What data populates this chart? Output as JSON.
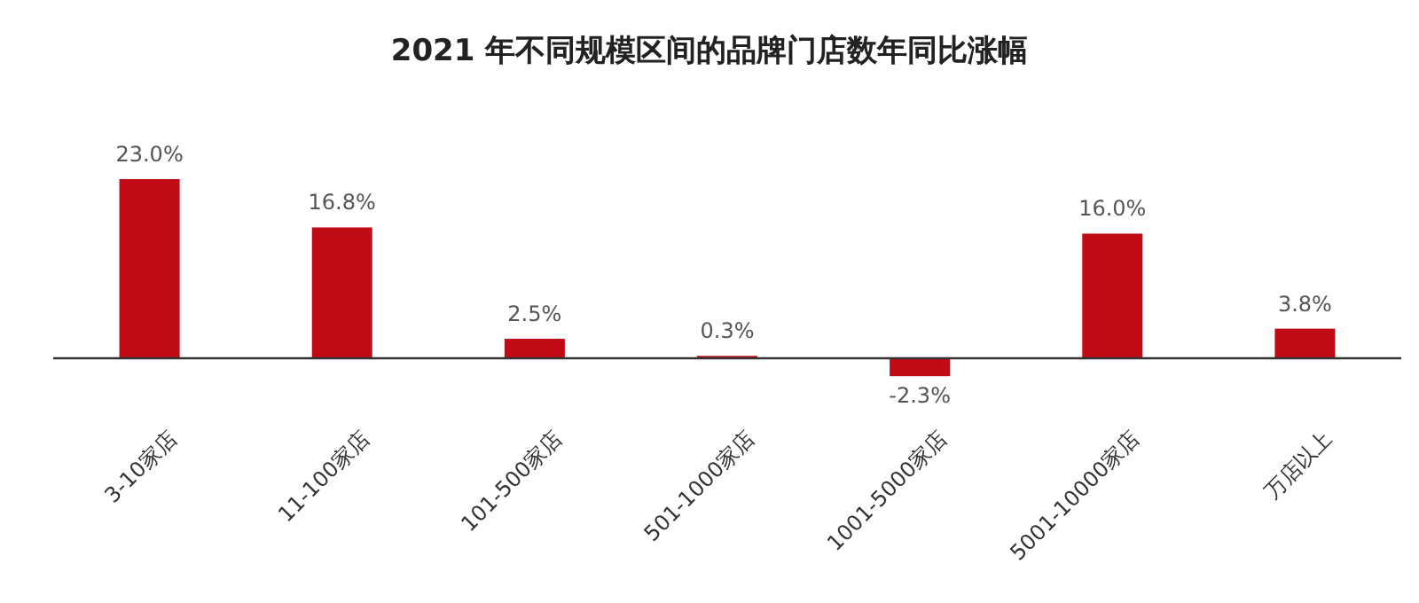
{
  "chart_data": {
    "type": "bar",
    "title": "2021 年不同规模区间的品牌门店数年同比涨幅",
    "categories": [
      "3-10家店",
      "11-100家店",
      "101-500家店",
      "501-1000家店",
      "1001-5000家店",
      "5001-10000家店",
      "万店以上"
    ],
    "values": [
      23.0,
      16.8,
      2.5,
      0.3,
      -2.3,
      16.0,
      3.8
    ],
    "value_labels": [
      "23.0%",
      "16.8%",
      "2.5%",
      "0.3%",
      "-2.3%",
      "16.0%",
      "3.8%"
    ],
    "color": "#c00a16"
  }
}
